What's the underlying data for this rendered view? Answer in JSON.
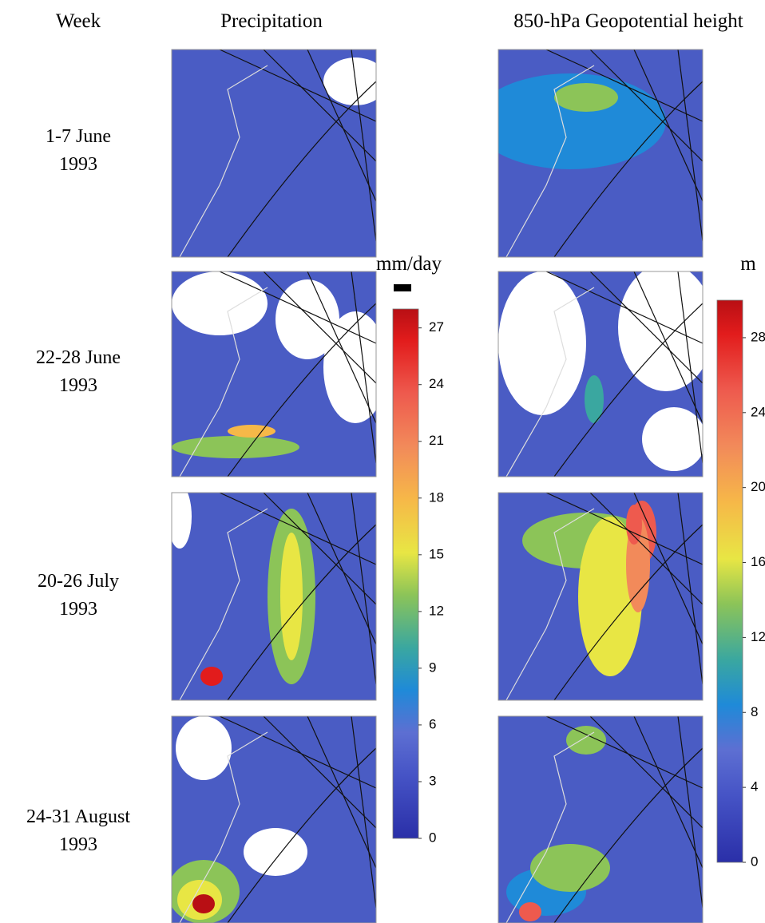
{
  "header": {
    "week": "Week",
    "precipitation": "Precipitation",
    "height": "850-hPa Geopotential height"
  },
  "rows": [
    {
      "week": "1-7 June",
      "year": "1993"
    },
    {
      "week": "22-28 June",
      "year": "1993"
    },
    {
      "week": "20-26 July",
      "year": "1993"
    },
    {
      "week": "24-31 August",
      "year": "1993"
    }
  ],
  "colorbars": [
    {
      "unit": "mm/day",
      "lim": [
        0,
        28
      ],
      "ticks": [
        0,
        3,
        6,
        9,
        12,
        15,
        18,
        21,
        24,
        27
      ]
    },
    {
      "unit": "m",
      "lim": [
        0,
        30
      ],
      "ticks": [
        0,
        4,
        8,
        12,
        16,
        20,
        24,
        28
      ]
    }
  ]
}
